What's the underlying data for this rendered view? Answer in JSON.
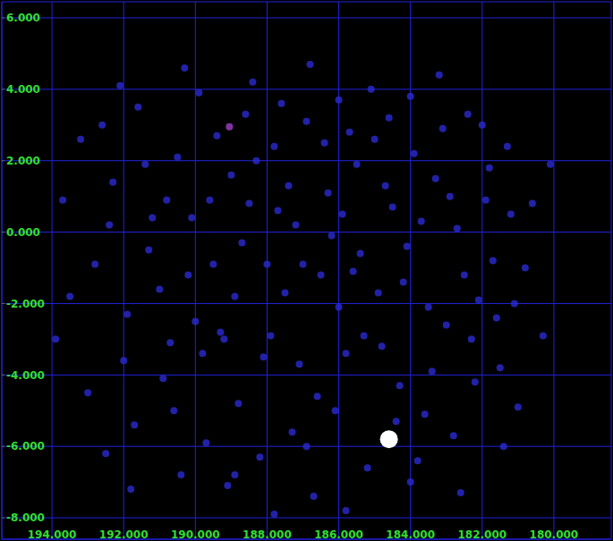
{
  "chart_data": {
    "type": "scatter",
    "xlim": [
      195.4,
      178.4
    ],
    "xticks": [
      {
        "value": 194,
        "label": "194.000"
      },
      {
        "value": 192,
        "label": "192.000"
      },
      {
        "value": 190,
        "label": "190.000"
      },
      {
        "value": 188,
        "label": "188.000"
      },
      {
        "value": 186,
        "label": "186.000"
      },
      {
        "value": 184,
        "label": "184.000"
      },
      {
        "value": 182,
        "label": "182.000"
      },
      {
        "value": 180,
        "label": "180.000"
      }
    ],
    "ylim": [
      -8.6,
      6.45
    ],
    "yticks": [
      {
        "value": -8,
        "label": "-8.000"
      },
      {
        "value": -6,
        "label": "-6.000"
      },
      {
        "value": -4,
        "label": "-4.000"
      },
      {
        "value": -2,
        "label": "-2.000"
      },
      {
        "value": 0,
        "label": "0.000"
      },
      {
        "value": 2,
        "label": "2.000"
      },
      {
        "value": 4,
        "label": "4.000"
      },
      {
        "value": 6,
        "label": "6.000"
      }
    ],
    "grid": true,
    "series": [
      {
        "color": "#2a2ad2",
        "marker": "circle",
        "x": [
          193.2,
          192.8,
          192.3,
          191.9,
          191.6,
          191.2,
          190.9,
          190.5,
          190.2,
          189.9,
          189.6,
          189.3,
          189.0,
          188.7,
          188.4,
          188.1,
          187.8,
          187.5,
          187.2,
          186.9,
          186.6,
          186.3,
          186.0,
          185.7,
          185.4,
          185.1,
          184.8,
          184.5,
          184.2,
          183.9,
          183.6,
          183.3,
          183.0,
          182.7,
          182.4,
          182.1,
          181.8,
          181.5,
          181.2,
          180.8,
          193.5,
          193.0,
          192.5,
          192.1,
          191.7,
          191.3,
          190.8,
          190.4,
          190.0,
          189.7,
          189.4,
          189.1,
          188.8,
          188.5,
          188.2,
          187.9,
          187.6,
          187.3,
          187.0,
          186.7,
          186.4,
          186.1,
          185.8,
          185.5,
          185.2,
          184.9,
          184.6,
          184.3,
          184.0,
          183.7,
          183.4,
          183.1,
          182.8,
          182.5,
          182.2,
          181.9,
          181.6,
          181.3,
          181.0,
          180.6,
          192.6,
          192.0,
          191.4,
          190.7,
          190.1,
          189.5,
          188.9,
          188.3,
          187.7,
          187.1,
          186.5,
          185.9,
          185.3,
          184.7,
          184.1,
          183.5,
          182.9,
          182.3,
          181.7,
          181.1,
          190.3,
          188.6,
          186.8,
          185.0,
          183.2,
          187.4,
          186.2,
          185.6,
          188.0,
          189.8,
          191.0,
          192.4,
          193.7,
          180.3,
          180.1,
          181.4,
          182.6,
          184.4,
          186.9,
          188.9,
          190.6,
          191.8,
          185.8,
          183.8,
          187.8,
          189.2,
          186.0,
          184.0,
          182.0,
          193.9
        ],
        "values": [
          2.6,
          -0.9,
          1.4,
          -2.3,
          3.5,
          0.4,
          -4.1,
          2.1,
          -1.2,
          3.9,
          0.9,
          -2.8,
          1.6,
          -0.3,
          4.2,
          -3.5,
          2.4,
          -1.7,
          0.2,
          3.1,
          -4.6,
          1.1,
          -2.1,
          2.8,
          -0.6,
          4.0,
          -3.2,
          0.7,
          -1.4,
          2.2,
          -5.1,
          1.5,
          -2.6,
          0.1,
          3.3,
          -1.9,
          1.8,
          -3.8,
          0.5,
          -1.0,
          -1.8,
          -4.5,
          -6.2,
          4.1,
          -5.4,
          -0.5,
          0.9,
          -6.8,
          -2.5,
          -5.9,
          2.7,
          -7.1,
          -4.8,
          0.8,
          -6.3,
          -2.9,
          3.6,
          -5.6,
          -0.9,
          -7.4,
          2.5,
          -5.0,
          -3.4,
          1.9,
          -6.6,
          -1.7,
          3.2,
          -4.3,
          -7.0,
          0.3,
          -3.9,
          2.9,
          -5.7,
          -1.2,
          -4.2,
          0.9,
          -2.4,
          2.4,
          -4.9,
          0.8,
          3.0,
          -3.6,
          1.9,
          -3.1,
          0.4,
          -0.9,
          -1.8,
          2.0,
          0.6,
          -3.7,
          -1.2,
          0.5,
          -2.9,
          1.3,
          -0.4,
          -2.1,
          1.0,
          -3.0,
          -0.8,
          -2.0,
          4.6,
          3.3,
          4.7,
          2.6,
          4.4,
          1.3,
          -0.1,
          -1.1,
          -0.9,
          -3.4,
          -1.6,
          0.2,
          0.9,
          -2.9,
          1.9,
          -6.0,
          -7.3,
          -5.3,
          -6.0,
          -6.8,
          -5.0,
          -7.2,
          -7.8,
          -6.4,
          -7.9,
          -3.0,
          3.7,
          3.8,
          3.0,
          -3.0
        ]
      },
      {
        "color": "#a040c8",
        "marker": "circle",
        "x": [
          189.05
        ],
        "values": [
          2.95
        ]
      },
      {
        "color": "#ffffff",
        "marker": "large_circle",
        "x": [
          184.6
        ],
        "values": [
          -5.8
        ]
      }
    ]
  }
}
